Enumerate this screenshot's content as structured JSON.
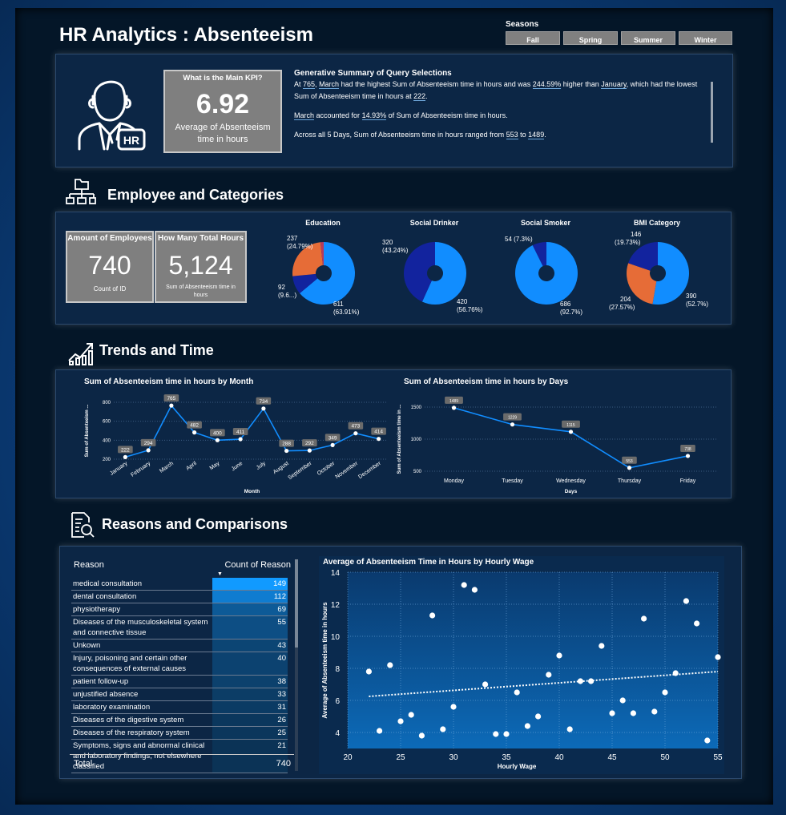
{
  "header": {
    "title": "HR Analytics : Absenteeism"
  },
  "seasons": {
    "label": "Seasons",
    "options": [
      "Fall",
      "Spring",
      "Summer",
      "Winter"
    ]
  },
  "kpi": {
    "question": "What is the Main KPI?",
    "value": "6.92",
    "caption": "Average of Absenteeism time in hours",
    "hr_badge": "HR"
  },
  "summary": {
    "title": "Generative Summary of Query Selections",
    "p1": {
      "a": "At ",
      "b": "765",
      "c": ", ",
      "d": "March",
      "e": " had the highest Sum of Absenteeism time in hours and was ",
      "f": "244.59%",
      "g": " higher than ",
      "h": "January",
      "i": ", which had the lowest Sum of Absenteeism time in hours at ",
      "j": "222",
      "k": "."
    },
    "p2": {
      "a": "March",
      "b": " accounted for ",
      "c": "14.93%",
      "d": " of Sum of Absenteeism time in hours."
    },
    "p3": {
      "a": "Across all 5 Days, Sum of Absenteeism time in hours ranged from ",
      "b": "553",
      "c": " to ",
      "d": "1489",
      "e": "."
    }
  },
  "sections": {
    "employee": "Employee and Categories",
    "trends": "Trends and Time",
    "reasons": "Reasons and Comparisons"
  },
  "cards": [
    {
      "title": "Amount of Employees",
      "value": "740",
      "caption": "Count of ID"
    },
    {
      "title": "How Many Total Hours",
      "value": "5,124",
      "caption": "Sum of Absenteeism time in hours"
    }
  ],
  "colors": {
    "blue": "#118dff",
    "navy": "#12239e",
    "orange": "#e66c37",
    "red": "#c0392b"
  },
  "donuts": [
    {
      "title": "Education",
      "slices": [
        {
          "label1": "611",
          "label2": "(63.91%)",
          "value": 63.91,
          "color": "#118dff"
        },
        {
          "label1": "92",
          "label2": "(9.6...)",
          "value": 9.62,
          "color": "#12239e"
        },
        {
          "label1": "237",
          "label2": "(24.79%)",
          "value": 24.79,
          "color": "#e66c37"
        },
        {
          "label1": "",
          "label2": "",
          "value": 1.68,
          "color": "#b83a5a"
        }
      ]
    },
    {
      "title": "Social Drinker",
      "slices": [
        {
          "label1": "420",
          "label2": "(56.76%)",
          "value": 56.76,
          "color": "#118dff"
        },
        {
          "label1": "320",
          "label2": "(43.24%)",
          "value": 43.24,
          "color": "#12239e"
        }
      ]
    },
    {
      "title": "Social Smoker",
      "slices": [
        {
          "label1": "686",
          "label2": "(92.7%)",
          "value": 92.7,
          "color": "#118dff"
        },
        {
          "label1": "54 (7.3%)",
          "label2": "",
          "value": 7.3,
          "color": "#12239e"
        }
      ]
    },
    {
      "title": "BMI Category",
      "slices": [
        {
          "label1": "390",
          "label2": "(52.7%)",
          "value": 52.7,
          "color": "#118dff"
        },
        {
          "label1": "204",
          "label2": "(27.57%)",
          "value": 27.57,
          "color": "#e66c37"
        },
        {
          "label1": "146",
          "label2": "(19.73%)",
          "value": 19.73,
          "color": "#12239e"
        }
      ]
    }
  ],
  "chart_data": [
    {
      "type": "line",
      "title": "Sum of Absenteeism time in hours by Month",
      "xlabel": "Month",
      "ylabel": "Sum of Absenteeism ...",
      "categories": [
        "January",
        "February",
        "March",
        "April",
        "May",
        "June",
        "July",
        "August",
        "September",
        "October",
        "November",
        "December"
      ],
      "values": [
        222,
        294,
        765,
        482,
        400,
        411,
        734,
        288,
        292,
        349,
        473,
        414
      ],
      "yticks": [
        200,
        400,
        600,
        800
      ],
      "ylim": [
        200,
        800
      ]
    },
    {
      "type": "line",
      "title": "Sum of Absenteeism time in hours by Days",
      "xlabel": "Days",
      "ylabel": "Sum of Absenteeism time in ...",
      "categories": [
        "Monday",
        "Tuesday",
        "Wednesday",
        "Thursday",
        "Friday"
      ],
      "values": [
        1489,
        1229,
        1115,
        553,
        738
      ],
      "yticks": [
        500,
        1000,
        1500
      ],
      "ylim": [
        500,
        1500
      ]
    },
    {
      "type": "scatter",
      "title": "Average of Absenteeism Time in Hours by Hourly Wage",
      "xlabel": "Hourly Wage",
      "ylabel": "Average of Absenteeism time in hours",
      "xticks": [
        20,
        25,
        30,
        35,
        40,
        45,
        50,
        55
      ],
      "yticks": [
        4,
        6,
        8,
        10,
        12,
        14
      ],
      "xlim": [
        20,
        55
      ],
      "ylim": [
        3,
        14
      ],
      "x": [
        22,
        23,
        24,
        25,
        26,
        27,
        28,
        29,
        30,
        31,
        32,
        33,
        34,
        35,
        36,
        37,
        38,
        39,
        40,
        41,
        42,
        43,
        44,
        45,
        46,
        47,
        48,
        49,
        50,
        51,
        52,
        53,
        54,
        55
      ],
      "y": [
        7.8,
        4.1,
        8.2,
        4.7,
        5.1,
        3.8,
        11.3,
        4.2,
        5.6,
        13.2,
        12.9,
        7.0,
        3.9,
        3.9,
        6.5,
        4.4,
        5.0,
        7.6,
        8.8,
        4.2,
        7.2,
        7.2,
        9.4,
        5.2,
        6.0,
        5.2,
        11.1,
        5.3,
        6.5,
        7.7,
        12.2,
        10.8,
        3.5,
        8.7
      ],
      "trend": [
        6.25,
        7.8
      ]
    }
  ],
  "reasons_table": {
    "col1": "Reason",
    "col2": "Count of Reason",
    "rows": [
      {
        "reason": "medical consultation",
        "count": "149",
        "n": 149
      },
      {
        "reason": "dental consultation",
        "count": "112",
        "n": 112
      },
      {
        "reason": "physiotherapy",
        "count": "69",
        "n": 69
      },
      {
        "reason": "Diseases of the musculoskeletal system and connective tissue",
        "count": "55",
        "n": 55
      },
      {
        "reason": "Unkown",
        "count": "43",
        "n": 43
      },
      {
        "reason": "Injury, poisoning and certain other consequences of external causes",
        "count": "40",
        "n": 40
      },
      {
        "reason": "patient follow-up",
        "count": "38",
        "n": 38
      },
      {
        "reason": "unjustified absence",
        "count": "33",
        "n": 33
      },
      {
        "reason": "laboratory examination",
        "count": "31",
        "n": 31
      },
      {
        "reason": "Diseases of the digestive system",
        "count": "26",
        "n": 26
      },
      {
        "reason": "Diseases of the respiratory system",
        "count": "25",
        "n": 25
      },
      {
        "reason": "Symptoms, signs and abnormal clinical and laboratory findings, not elsewhere classified",
        "count": "21",
        "n": 21
      }
    ],
    "total_label": "Total",
    "total_value": "740"
  }
}
